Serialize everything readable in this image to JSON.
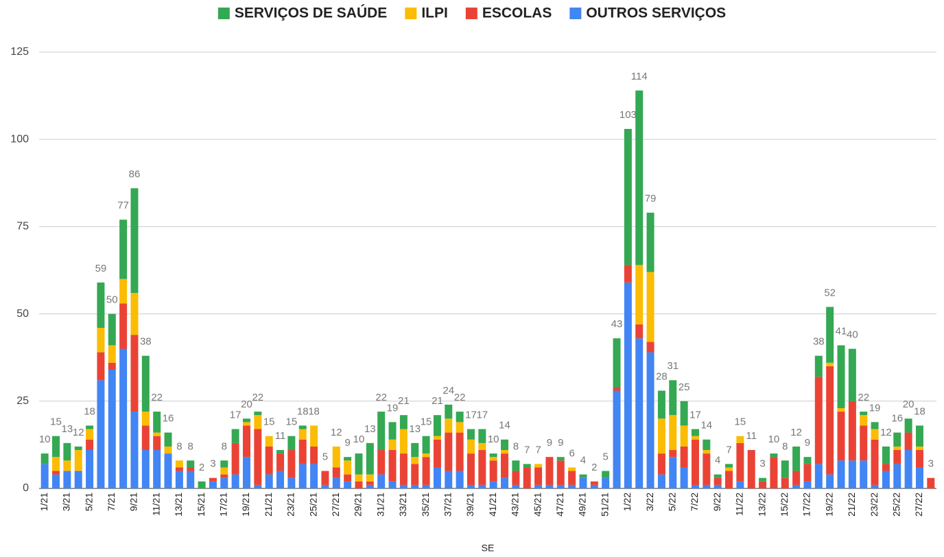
{
  "chart_data": {
    "type": "stacked_bar",
    "x_label": "SE",
    "categories": [
      "1/21",
      null,
      "3/21",
      null,
      "5/21",
      null,
      "7/21",
      null,
      "9/21",
      null,
      "11/21",
      null,
      "13/21",
      null,
      "15/21",
      null,
      "17/21",
      null,
      "19/21",
      null,
      "21/21",
      null,
      "23/21",
      null,
      "25/21",
      null,
      "27/21",
      null,
      "29/21",
      null,
      "31/21",
      null,
      "33/21",
      null,
      "35/21",
      null,
      "37/21",
      null,
      "39/21",
      null,
      "41/21",
      null,
      "43/21",
      null,
      "45/21",
      null,
      "47/21",
      null,
      "49/21",
      null,
      "51/21",
      null,
      "1/22",
      null,
      "3/22",
      null,
      "5/22",
      null,
      "7/22",
      null,
      "9/22",
      null,
      "11/22",
      null,
      "13/22",
      null,
      "15/22",
      null,
      "17/22",
      null,
      "19/22",
      null,
      "21/22",
      null,
      "23/22",
      null,
      "25/22",
      null,
      "27/22",
      null
    ],
    "series": [
      {
        "name": "SERVIÇOS DE SAÚDE",
        "color": "#34a853",
        "values": [
          3,
          6,
          5,
          1,
          1,
          13,
          9,
          17,
          30,
          16,
          6,
          4,
          0,
          2,
          2,
          0,
          2,
          4,
          1,
          1,
          0,
          1,
          4,
          1,
          0,
          0,
          0,
          1,
          6,
          9,
          11,
          5,
          4,
          4,
          5,
          6,
          4,
          3,
          3,
          4,
          1,
          3,
          3,
          1,
          0,
          0,
          1,
          0,
          1,
          0,
          2,
          14,
          39,
          50,
          17,
          8,
          10,
          7,
          2,
          3,
          1,
          1,
          0,
          0,
          1,
          1,
          5,
          7,
          2,
          6,
          16,
          18,
          15,
          1,
          2,
          5,
          4,
          4,
          6,
          0
        ]
      },
      {
        "name": "ILPI",
        "color": "#fbbc04",
        "values": [
          0,
          4,
          3,
          6,
          3,
          7,
          5,
          7,
          12,
          4,
          1,
          2,
          2,
          0,
          0,
          0,
          2,
          0,
          1,
          4,
          3,
          0,
          0,
          3,
          6,
          0,
          6,
          4,
          2,
          2,
          0,
          3,
          7,
          2,
          1,
          1,
          4,
          3,
          4,
          2,
          1,
          1,
          0,
          0,
          1,
          0,
          0,
          1,
          0,
          0,
          0,
          0,
          0,
          17,
          20,
          10,
          10,
          6,
          1,
          1,
          0,
          1,
          2,
          0,
          0,
          0,
          0,
          0,
          0,
          0,
          1,
          1,
          0,
          3,
          3,
          0,
          1,
          0,
          1,
          0
        ]
      },
      {
        "name": "ESCOLAS",
        "color": "#ea4335",
        "values": [
          0,
          1,
          0,
          0,
          3,
          8,
          2,
          13,
          22,
          7,
          4,
          0,
          1,
          1,
          0,
          1,
          1,
          9,
          9,
          16,
          8,
          5,
          8,
          7,
          5,
          4,
          3,
          2,
          2,
          1,
          7,
          9,
          9,
          6,
          8,
          8,
          11,
          11,
          9,
          10,
          6,
          7,
          4,
          6,
          5,
          8,
          7,
          4,
          0,
          1,
          0,
          1,
          5,
          4,
          3,
          6,
          2,
          6,
          13,
          9,
          2,
          5,
          11,
          11,
          2,
          9,
          3,
          4,
          5,
          25,
          31,
          14,
          17,
          10,
          13,
          2,
          4,
          5,
          5,
          3
        ]
      },
      {
        "name": "OUTROS SERVIÇOS",
        "color": "#4285f4",
        "values": [
          7,
          4,
          5,
          5,
          11,
          31,
          34,
          40,
          22,
          11,
          11,
          10,
          5,
          5,
          0,
          2,
          3,
          4,
          9,
          1,
          4,
          5,
          3,
          7,
          7,
          1,
          3,
          2,
          0,
          1,
          4,
          2,
          1,
          1,
          1,
          6,
          5,
          5,
          1,
          1,
          2,
          3,
          1,
          0,
          1,
          1,
          1,
          1,
          3,
          1,
          3,
          28,
          59,
          43,
          39,
          4,
          9,
          6,
          1,
          1,
          1,
          0,
          2,
          0,
          0,
          0,
          0,
          1,
          2,
          7,
          4,
          8,
          8,
          8,
          1,
          5,
          7,
          11,
          6,
          0
        ]
      }
    ],
    "totals": [
      10,
      15,
      13,
      12,
      18,
      59,
      50,
      77,
      86,
      38,
      22,
      16,
      8,
      8,
      2,
      3,
      8,
      17,
      20,
      22,
      15,
      11,
      15,
      18,
      18,
      5,
      12,
      9,
      10,
      13,
      22,
      19,
      21,
      13,
      15,
      21,
      24,
      22,
      17,
      17,
      10,
      14,
      8,
      7,
      7,
      9,
      9,
      6,
      4,
      2,
      5,
      43,
      103,
      114,
      79,
      28,
      31,
      25,
      17,
      14,
      4,
      7,
      15,
      11,
      3,
      10,
      8,
      12,
      9,
      38,
      52,
      41,
      40,
      22,
      19,
      12,
      16,
      20,
      18,
      3
    ],
    "ylim": [
      0,
      125
    ],
    "yticks": [
      0,
      25,
      50,
      75,
      100,
      125
    ],
    "grid": true,
    "legend": "top"
  }
}
